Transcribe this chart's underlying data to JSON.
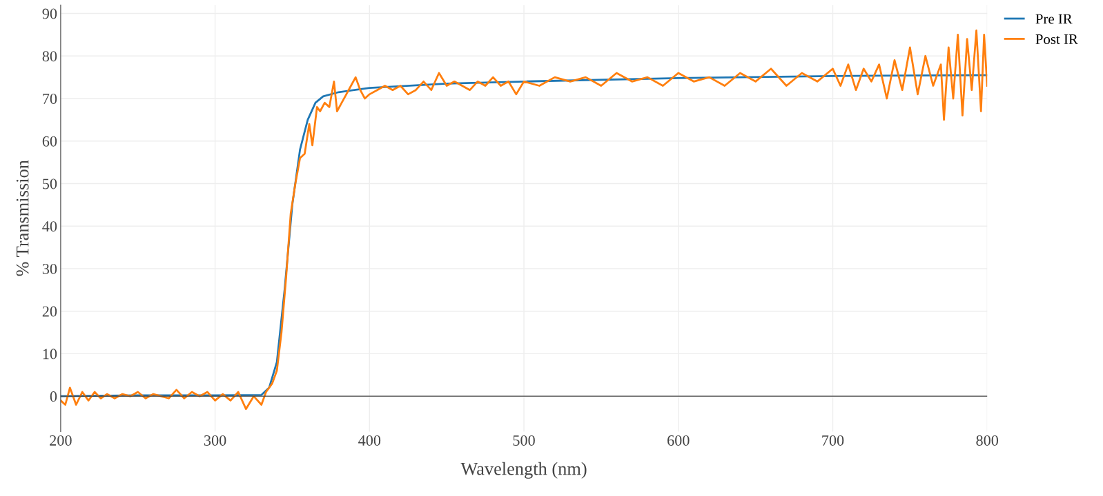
{
  "chart_data": {
    "type": "line",
    "xlabel": "Wavelength (nm)",
    "ylabel": "% Transmission",
    "xlim": [
      200,
      800
    ],
    "ylim": [
      -8.3,
      92
    ],
    "xticks": [
      200,
      300,
      400,
      500,
      600,
      700,
      800
    ],
    "yticks": [
      0,
      10,
      20,
      30,
      40,
      50,
      60,
      70,
      80,
      90
    ],
    "grid": true,
    "legend": "top right",
    "marker": "none",
    "line_style": "solid",
    "series": [
      {
        "name": "Pre IR",
        "color": "#1f77b4",
        "x": [
          200,
          250,
          300,
          330,
          335,
          340,
          345,
          350,
          355,
          360,
          365,
          370,
          380,
          400,
          450,
          500,
          600,
          700,
          800
        ],
        "values": [
          0,
          0.2,
          0.2,
          0.3,
          2,
          8,
          25,
          45,
          58,
          65,
          69,
          70.5,
          71.5,
          72.5,
          73.5,
          74,
          74.8,
          75.3,
          75.5
        ]
      },
      {
        "name": "Post IR",
        "color": "#ff7f0e",
        "x": [
          200,
          203,
          206,
          210,
          214,
          218,
          222,
          226,
          230,
          235,
          240,
          245,
          250,
          255,
          260,
          265,
          270,
          275,
          280,
          285,
          290,
          295,
          300,
          305,
          310,
          315,
          320,
          325,
          330,
          333,
          337,
          340,
          343,
          346,
          349,
          352,
          355,
          358,
          361,
          363,
          366,
          368,
          371,
          374,
          377,
          379,
          382,
          385,
          388,
          391,
          394,
          397,
          400,
          405,
          410,
          415,
          420,
          425,
          430,
          435,
          440,
          445,
          450,
          455,
          460,
          465,
          470,
          475,
          480,
          485,
          490,
          495,
          500,
          510,
          520,
          530,
          540,
          550,
          560,
          570,
          580,
          590,
          600,
          610,
          620,
          630,
          640,
          650,
          660,
          670,
          680,
          690,
          700,
          705,
          710,
          715,
          720,
          725,
          730,
          735,
          740,
          745,
          750,
          755,
          760,
          765,
          770,
          772,
          775,
          778,
          781,
          784,
          787,
          790,
          793,
          796,
          798,
          800
        ],
        "values": [
          -1,
          -2,
          2,
          -2,
          1,
          -1,
          1,
          -0.5,
          0.5,
          -0.5,
          0.5,
          0,
          1,
          -0.5,
          0.5,
          0,
          -0.5,
          1.5,
          -0.5,
          1,
          0,
          1,
          -1,
          0.5,
          -1,
          1,
          -3,
          0,
          -2,
          1,
          3,
          6,
          15,
          28,
          43,
          50,
          56,
          57,
          64,
          59,
          68,
          67,
          69,
          68,
          74,
          67,
          69,
          71,
          73,
          75,
          72,
          70,
          71,
          72,
          73,
          72,
          73,
          71,
          72,
          74,
          72,
          76,
          73,
          74,
          73,
          72,
          74,
          73,
          75,
          73,
          74,
          71,
          74,
          73,
          75,
          74,
          75,
          73,
          76,
          74,
          75,
          73,
          76,
          74,
          75,
          73,
          76,
          74,
          77,
          73,
          76,
          74,
          77,
          73,
          78,
          72,
          77,
          74,
          78,
          70,
          79,
          72,
          82,
          71,
          80,
          73,
          78,
          65,
          82,
          70,
          85,
          66,
          84,
          72,
          86,
          67,
          85,
          73
        ]
      }
    ]
  }
}
